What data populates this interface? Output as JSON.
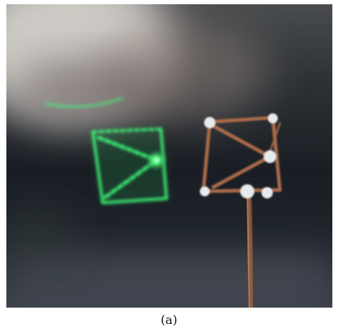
{
  "figure": {
    "caption": "(a)"
  },
  "colors": {
    "laser_green": "#3cff7a",
    "wire_copper": "#a86b4a",
    "solder_silver": "#e8ebee",
    "background_dark": "#1c2026"
  }
}
